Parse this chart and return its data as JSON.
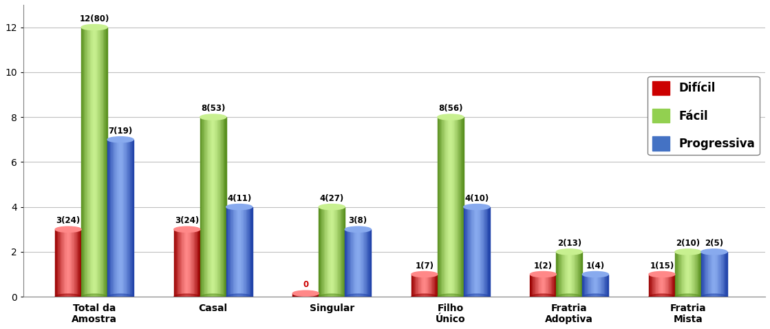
{
  "categories": [
    "Total da\nAmostra",
    "Casal",
    "Singular",
    "Filho\nÚnico",
    "Fratria\nAdoptiva",
    "Fratria\nMista"
  ],
  "series": {
    "Difícil": {
      "values": [
        3,
        3,
        0,
        1,
        1,
        1
      ],
      "labels": [
        "3(24)",
        "3(24)",
        "0",
        "1(7)",
        "1(2)",
        "1(15)"
      ],
      "color": "#CC0000",
      "light_color": "#FF8888",
      "dark_color": "#990000"
    },
    "Fácil": {
      "values": [
        12,
        8,
        4,
        8,
        2,
        2
      ],
      "labels": [
        "12(80)",
        "8(53)",
        "4(27)",
        "8(56)",
        "2(13)",
        "2(10)"
      ],
      "color": "#92D050",
      "light_color": "#C8F090",
      "dark_color": "#5A9020"
    },
    "Progressiva": {
      "values": [
        7,
        4,
        3,
        4,
        1,
        2
      ],
      "labels": [
        "7(19)",
        "4(11)",
        "3(8)",
        "4(10)",
        "1(4)",
        "2(5)"
      ],
      "color": "#4472C4",
      "light_color": "#88AAEE",
      "dark_color": "#2244AA"
    }
  },
  "ylim": [
    0,
    13
  ],
  "yticks": [
    0,
    2,
    4,
    6,
    8,
    10,
    12
  ],
  "bar_width": 0.22,
  "legend_order": [
    "Difícil",
    "Fácil",
    "Progressiva"
  ],
  "background_color": "#FFFFFF",
  "grid_color": "#C0C0C0",
  "label_fontsize": 8.5,
  "tick_fontsize": 10,
  "legend_fontsize": 12,
  "axis_color": "#808080",
  "zero_label_color": "#CC0000"
}
